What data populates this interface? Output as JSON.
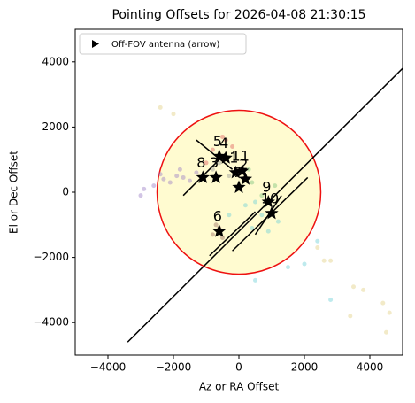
{
  "chart_data": {
    "type": "scatter",
    "title": "Pointing Offsets for 2026-04-08 21:30:15",
    "x_label": "Az or RA Offset",
    "y_label": "El or Dec Offset",
    "xlim": [
      -5000,
      5000
    ],
    "ylim": [
      -5000,
      5000
    ],
    "xticks": [
      {
        "value": -4000,
        "label": "−4000"
      },
      {
        "value": -2000,
        "label": "−2000"
      },
      0,
      2000,
      4000
    ],
    "yticks": [
      {
        "value": -4000,
        "label": "−4000"
      },
      {
        "value": -2000,
        "label": "−2000"
      },
      0,
      2000,
      4000
    ],
    "legend": {
      "label": "Off-FOV antenna (arrow)",
      "loc": "upper left"
    },
    "circle": {
      "cx": 0,
      "cy": 0,
      "r": 2500,
      "fill": "#fffbd0",
      "edge": "#ee1111"
    },
    "scatter_groups": [
      {
        "color": "#9b7fc6",
        "x": [
          -2300,
          -2100,
          -1900,
          -1700,
          -1500,
          -1300,
          -2600,
          -2900,
          -3000,
          -2400,
          -1800,
          -1100
        ],
        "y": [
          400,
          300,
          500,
          450,
          350,
          600,
          200,
          100,
          -100,
          550,
          700,
          500
        ]
      },
      {
        "color": "#e3d184",
        "x": [
          -2400,
          -2000,
          3500,
          3800,
          4400,
          4600,
          4500,
          3400,
          2600,
          2800,
          2400
        ],
        "y": [
          2600,
          2400,
          -2900,
          -3000,
          -3400,
          -3700,
          -4300,
          -3800,
          -2100,
          -2100,
          -1700
        ]
      },
      {
        "color": "#6fd0d6",
        "x": [
          700,
          500,
          900,
          400,
          1500,
          2000,
          2400,
          2800,
          500,
          1200,
          -300,
          200
        ],
        "y": [
          -700,
          -300,
          -1200,
          -1100,
          -2300,
          -2200,
          -1500,
          -3300,
          -2700,
          -900,
          -700,
          -400
        ]
      },
      {
        "color": "#e06060",
        "x": [
          -800,
          -400,
          -1000,
          -200,
          -500
        ],
        "y": [
          1300,
          1600,
          900,
          1400,
          1700
        ]
      },
      {
        "color": "#7cc47c",
        "x": [
          400,
          700,
          300,
          1100
        ],
        "y": [
          300,
          -100,
          700,
          200
        ]
      },
      {
        "color": "#9e7063",
        "x": [
          -600,
          -800,
          -500,
          -700
        ],
        "y": [
          -1100,
          -1300,
          -1400,
          -1000
        ]
      },
      {
        "color": "#999999",
        "x": [
          -600,
          -800,
          -300
        ],
        "y": [
          900,
          700,
          500
        ]
      }
    ],
    "lines": [
      {
        "x": [
          -3400,
          5000
        ],
        "y": [
          -4600,
          3800
        ]
      },
      {
        "x": [
          -1300,
          -200
        ],
        "y": [
          1600,
          700
        ]
      },
      {
        "x": [
          -1700,
          -400
        ],
        "y": [
          -100,
          1200
        ]
      },
      {
        "x": [
          -900,
          500
        ],
        "y": [
          -1950,
          -600
        ]
      },
      {
        "x": [
          -200,
          2100
        ],
        "y": [
          -1800,
          450
        ]
      },
      {
        "x": [
          500,
          1300
        ],
        "y": [
          -1300,
          -100
        ]
      }
    ],
    "stars": {
      "labels": [
        "1",
        "2",
        "3",
        "4",
        "5",
        "6",
        "7",
        "8",
        "9",
        "10",
        "11"
      ],
      "x": [
        -100,
        200,
        -700,
        -400,
        -600,
        -600,
        0,
        -1100,
        900,
        1000,
        100
      ],
      "y": [
        600,
        400,
        450,
        1050,
        1100,
        -1200,
        150,
        450,
        -300,
        -650,
        650
      ]
    }
  }
}
